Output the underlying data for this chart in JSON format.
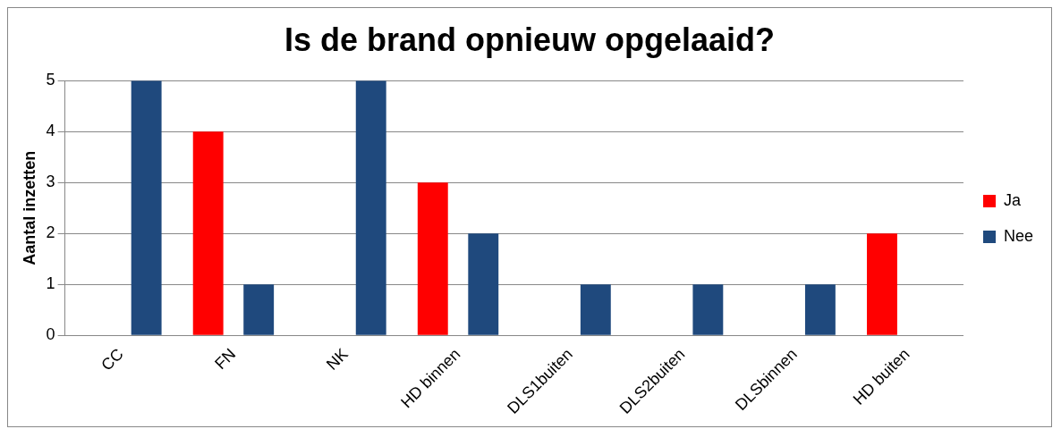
{
  "chart_data": {
    "type": "bar",
    "title": "Is de brand opnieuw opgelaaid?",
    "ylabel": "Aantal inzetten",
    "categories": [
      "CC",
      "FN",
      "NK",
      "HD binnen",
      "DLS1buiten",
      "DLS2buiten",
      "DLSbinnen",
      "HD buiten"
    ],
    "series": [
      {
        "name": "Ja",
        "color": "#ff0000",
        "values": [
          0,
          4,
          0,
          3,
          0,
          0,
          0,
          2
        ]
      },
      {
        "name": "Nee",
        "color": "#1f497d",
        "values": [
          5,
          1,
          5,
          2,
          1,
          1,
          1,
          0
        ]
      }
    ],
    "ylim": [
      0,
      5
    ],
    "yticks": [
      0,
      1,
      2,
      3,
      4,
      5
    ],
    "grid": "y",
    "legend": "right"
  }
}
